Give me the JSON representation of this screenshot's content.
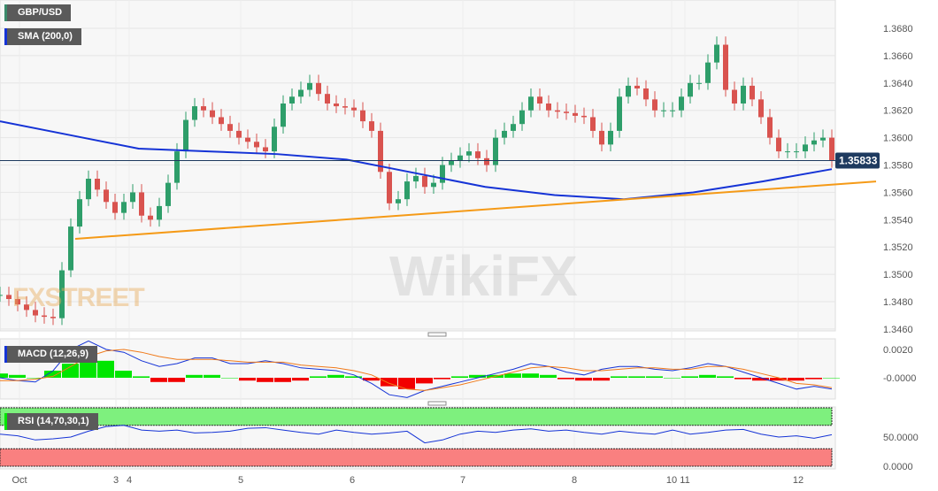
{
  "chart_data": [
    {
      "type": "candlestick",
      "title": "GBP/USD",
      "indicator": "SMA (200,0)",
      "ylim": [
        1.346,
        1.368
      ],
      "yticks": [
        "1.3680",
        "1.3660",
        "1.3640",
        "1.3620",
        "1.3600",
        "1.3580",
        "1.3560",
        "1.3540",
        "1.3520",
        "1.3500",
        "1.3480",
        "1.3460"
      ],
      "last_price": "1.35833",
      "closes": [
        1.3485,
        1.3482,
        1.3478,
        1.3474,
        1.347,
        1.3469,
        1.3468,
        1.3503,
        1.3535,
        1.3555,
        1.357,
        1.3562,
        1.3553,
        1.3545,
        1.3553,
        1.356,
        1.3543,
        1.354,
        1.355,
        1.3567,
        1.359,
        1.3613,
        1.3623,
        1.362,
        1.3615,
        1.361,
        1.3605,
        1.36,
        1.3597,
        1.3593,
        1.359,
        1.3608,
        1.3625,
        1.363,
        1.3635,
        1.364,
        1.3632,
        1.3625,
        1.3623,
        1.3622,
        1.362,
        1.3612,
        1.3605,
        1.3575,
        1.3552,
        1.3555,
        1.3568,
        1.3572,
        1.3564,
        1.3567,
        1.358,
        1.3583,
        1.3587,
        1.359,
        1.3585,
        1.358,
        1.36,
        1.3605,
        1.361,
        1.362,
        1.363,
        1.3625,
        1.362,
        1.3619,
        1.3618,
        1.3616,
        1.3615,
        1.3605,
        1.3595,
        1.3605,
        1.363,
        1.3638,
        1.3636,
        1.3628,
        1.362,
        1.362,
        1.362,
        1.363,
        1.364,
        1.364,
        1.3655,
        1.3668,
        1.3635,
        1.3625,
        1.3638,
        1.3628,
        1.3615,
        1.36,
        1.359,
        1.359,
        1.359,
        1.3595,
        1.3598,
        1.36,
        1.3583
      ],
      "sma": [
        1.3612,
        1.3602,
        1.3592,
        1.359,
        1.3588,
        1.3584,
        1.3574,
        1.3564,
        1.3558,
        1.3555,
        1.356,
        1.3568,
        1.3577
      ],
      "trendline": [
        1.3526,
        1.3568
      ],
      "colors": {
        "up": "#2e9e6a",
        "down": "#d9534f",
        "sma": "#1533d6",
        "trendline": "#f59a17",
        "price_line": "#1e3a5f"
      }
    },
    {
      "type": "macd",
      "title": "MACD (12,26,9)",
      "yticks": [
        "0.0020",
        "-0.0000"
      ],
      "histogram": [
        0.0003,
        0.0002,
        0,
        0.0005,
        0.001,
        0.0015,
        0.0012,
        0.0005,
        0.0001,
        -0.0003,
        -0.0003,
        0.0002,
        0.0002,
        0,
        -0.0002,
        -0.0003,
        -0.0003,
        -0.0002,
        0.0001,
        0.0002,
        0.0001,
        -0.0002,
        -0.0006,
        -0.0008,
        -0.0004,
        -0.0001,
        0.0001,
        0.0002,
        0.0002,
        0.0003,
        0.0003,
        0.0002,
        -0.0001,
        -0.0002,
        -0.0002,
        0.0001,
        0.0001,
        0.0001,
        0,
        0.0001,
        0.0002,
        0.0001,
        -0.0001,
        -0.0002,
        -0.0002,
        -0.0002,
        -0.0001,
        0
      ],
      "macd": [
        0,
        -0.0002,
        -0.0003,
        0.0005,
        0.002,
        0.0026,
        0.002,
        0.0018,
        0.0012,
        0.0008,
        0.001,
        0.0014,
        0.0014,
        0.001,
        0.001,
        0.0012,
        0.001,
        0.0007,
        0.0006,
        0.0005,
        0.0002,
        -0.0004,
        -0.0012,
        -0.0014,
        -0.0009,
        -0.0006,
        -0.0003,
        0,
        0.0003,
        0.0006,
        0.001,
        0.0008,
        0.0004,
        0.0002,
        0.0006,
        0.0008,
        0.0008,
        0.0006,
        0.0005,
        0.0007,
        0.001,
        0.0008,
        0.0004,
        0,
        -0.0004,
        -0.0008,
        -0.0006,
        -0.0008
      ],
      "signal": [
        -0.0002,
        -0.0002,
        -0.0001,
        0.0001,
        0.0008,
        0.0015,
        0.0019,
        0.002,
        0.0018,
        0.0015,
        0.0013,
        0.0013,
        0.0013,
        0.0012,
        0.0011,
        0.0011,
        0.0011,
        0.0009,
        0.0008,
        0.0007,
        0.0005,
        0.0002,
        -0.0004,
        -0.0008,
        -0.0009,
        -0.0007,
        -0.0005,
        -0.0002,
        0.0001,
        0.0004,
        0.0007,
        0.0008,
        0.0007,
        0.0005,
        0.0005,
        0.0006,
        0.0007,
        0.0007,
        0.0006,
        0.0006,
        0.0008,
        0.0008,
        0.0006,
        0.0003,
        0,
        -0.0004,
        -0.0005,
        -0.0007
      ],
      "colors": {
        "positive": "#00e600",
        "negative": "#f20000",
        "macd": "#1533d6",
        "signal": "#f07a1a"
      }
    },
    {
      "type": "rsi",
      "title": "RSI (14,70,30,1)",
      "yticks": [
        "50.0000",
        "0.0000"
      ],
      "overbought": 70,
      "oversold": 30,
      "values": [
        55,
        52,
        45,
        47,
        50,
        60,
        68,
        70,
        62,
        60,
        62,
        57,
        58,
        60,
        65,
        66,
        62,
        58,
        55,
        62,
        58,
        55,
        57,
        60,
        40,
        45,
        55,
        60,
        58,
        62,
        64,
        60,
        62,
        58,
        55,
        60,
        57,
        55,
        62,
        55,
        58,
        62,
        63,
        55,
        50,
        52,
        48,
        54
      ],
      "colors": {
        "line": "#1533d6",
        "overbought_band": "#7ef07e",
        "oversold_band": "#f98080"
      }
    }
  ],
  "xaxis": {
    "labels": [
      "Oct",
      "3",
      "4",
      "5",
      "6",
      "7",
      "8",
      "10",
      "11",
      "12"
    ]
  },
  "watermarks": [
    "FXSTREET",
    "WikiFX"
  ]
}
